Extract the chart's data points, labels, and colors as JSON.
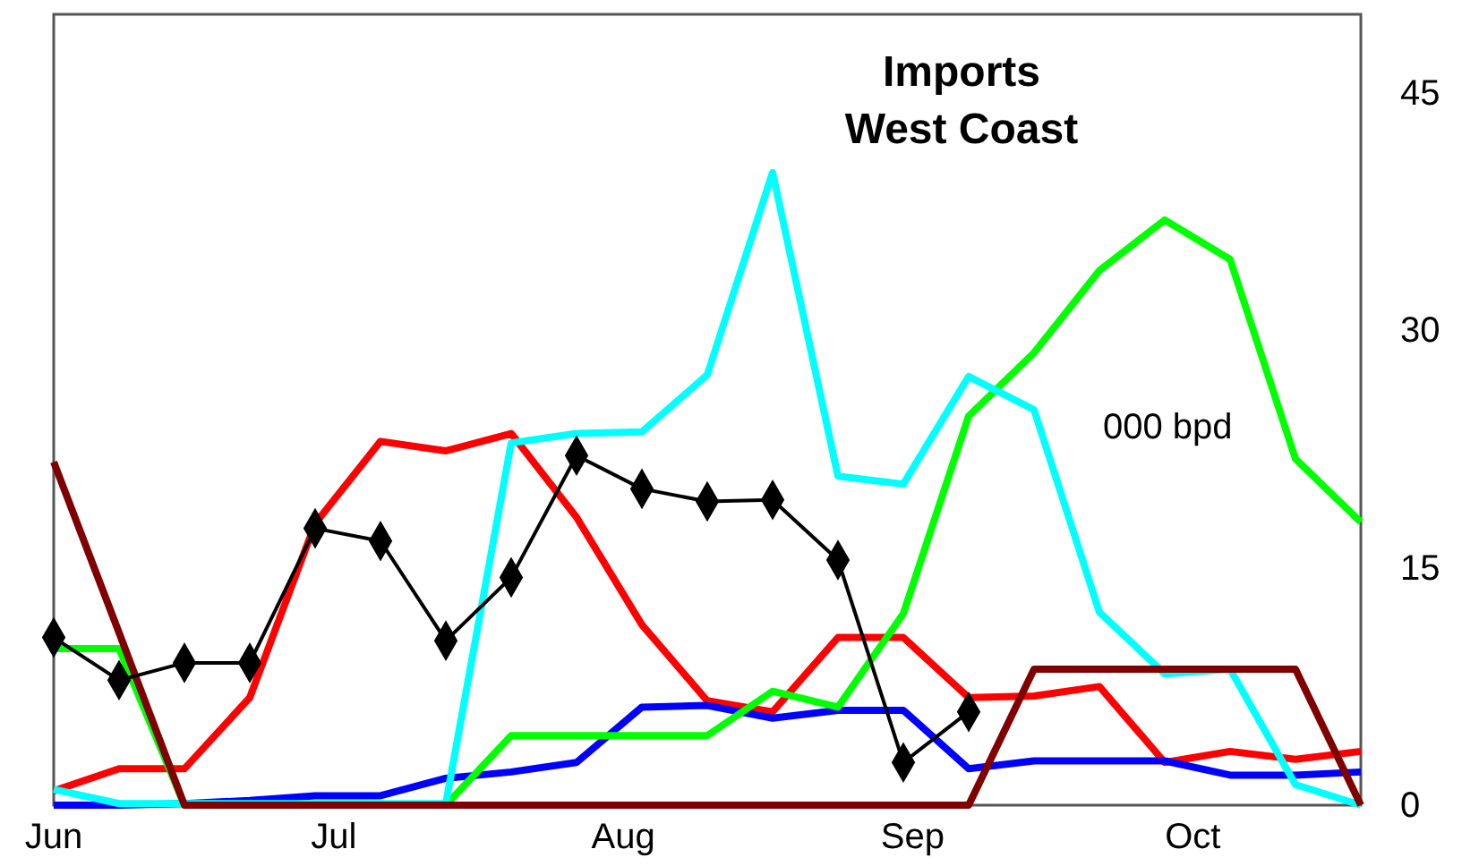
{
  "chart_data": {
    "type": "line",
    "title": "Imports",
    "subtitle": "West Coast",
    "annotations": [
      "000 bpd"
    ],
    "x": [
      "--06-01",
      "--06-08",
      "--06-15",
      "--06-22",
      "--06-29",
      "--07-06",
      "--07-13",
      "--07-20",
      "--07-27",
      "--08-03",
      "--08-10",
      "--08-17",
      "--08-24",
      "--08-31",
      "--09-07",
      "--09-14",
      "--09-21",
      "--09-28",
      "--10-05",
      "--10-12",
      "--10-19"
    ],
    "xlim": [
      "--06-01",
      "--10-19"
    ],
    "xticks": [
      {
        "value": "--06-01",
        "label": "Jun"
      },
      {
        "value": "--07-01",
        "label": "Jul"
      },
      {
        "value": "--08-01",
        "label": "Aug"
      },
      {
        "value": "--09-01",
        "label": "Sep"
      },
      {
        "value": "--10-01",
        "label": "Oct"
      }
    ],
    "ylim": [
      0,
      50
    ],
    "yticks": [
      0,
      15,
      30,
      45
    ],
    "grid": false,
    "series": [
      {
        "color": "#ff0000",
        "values": [
          0.9,
          2.3,
          2.3,
          6.8,
          17.8,
          23.0,
          22.4,
          23.5,
          18.2,
          11.4,
          6.6,
          5.9,
          10.6,
          10.6,
          6.8,
          6.9,
          7.5,
          2.7,
          3.4,
          2.9,
          3.4
        ]
      },
      {
        "color": "#0000ff",
        "values": [
          0,
          0,
          0.1,
          0.3,
          0.6,
          0.6,
          1.7,
          2.1,
          2.7,
          6.2,
          6.3,
          5.5,
          6.0,
          6.0,
          2.3,
          2.8,
          2.8,
          2.8,
          1.9,
          1.9,
          2.1
        ]
      },
      {
        "color": "#00ff00",
        "values": [
          9.9,
          9.9,
          0,
          0,
          0,
          0,
          0,
          4.4,
          4.4,
          4.4,
          4.4,
          7.2,
          6.2,
          12.1,
          24.6,
          28.6,
          33.8,
          37.0,
          34.5,
          21.9,
          17.9
        ]
      },
      {
        "color": "#00ffff",
        "values": [
          1.0,
          0.1,
          0.1,
          0.1,
          0.1,
          0.1,
          0.1,
          22.9,
          23.5,
          23.6,
          27.2,
          40.0,
          20.8,
          20.3,
          27.1,
          25.0,
          12.2,
          8.3,
          8.6,
          1.3,
          0
        ]
      },
      {
        "color": "#800000",
        "values": [
          21.7,
          10.9,
          0,
          0,
          0,
          0,
          0,
          0,
          0,
          0,
          0,
          0,
          0,
          0,
          0,
          8.6,
          8.6,
          8.6,
          8.6,
          8.6,
          0
        ]
      },
      {
        "color": "#000000",
        "marker": "diamond",
        "values": [
          10.6,
          7.9,
          9.0,
          9.0,
          17.5,
          16.7,
          10.4,
          14.4,
          22.1,
          20.0,
          19.2,
          19.3,
          15.5,
          2.7,
          5.9,
          null,
          null,
          null,
          null,
          null,
          null
        ]
      }
    ]
  }
}
